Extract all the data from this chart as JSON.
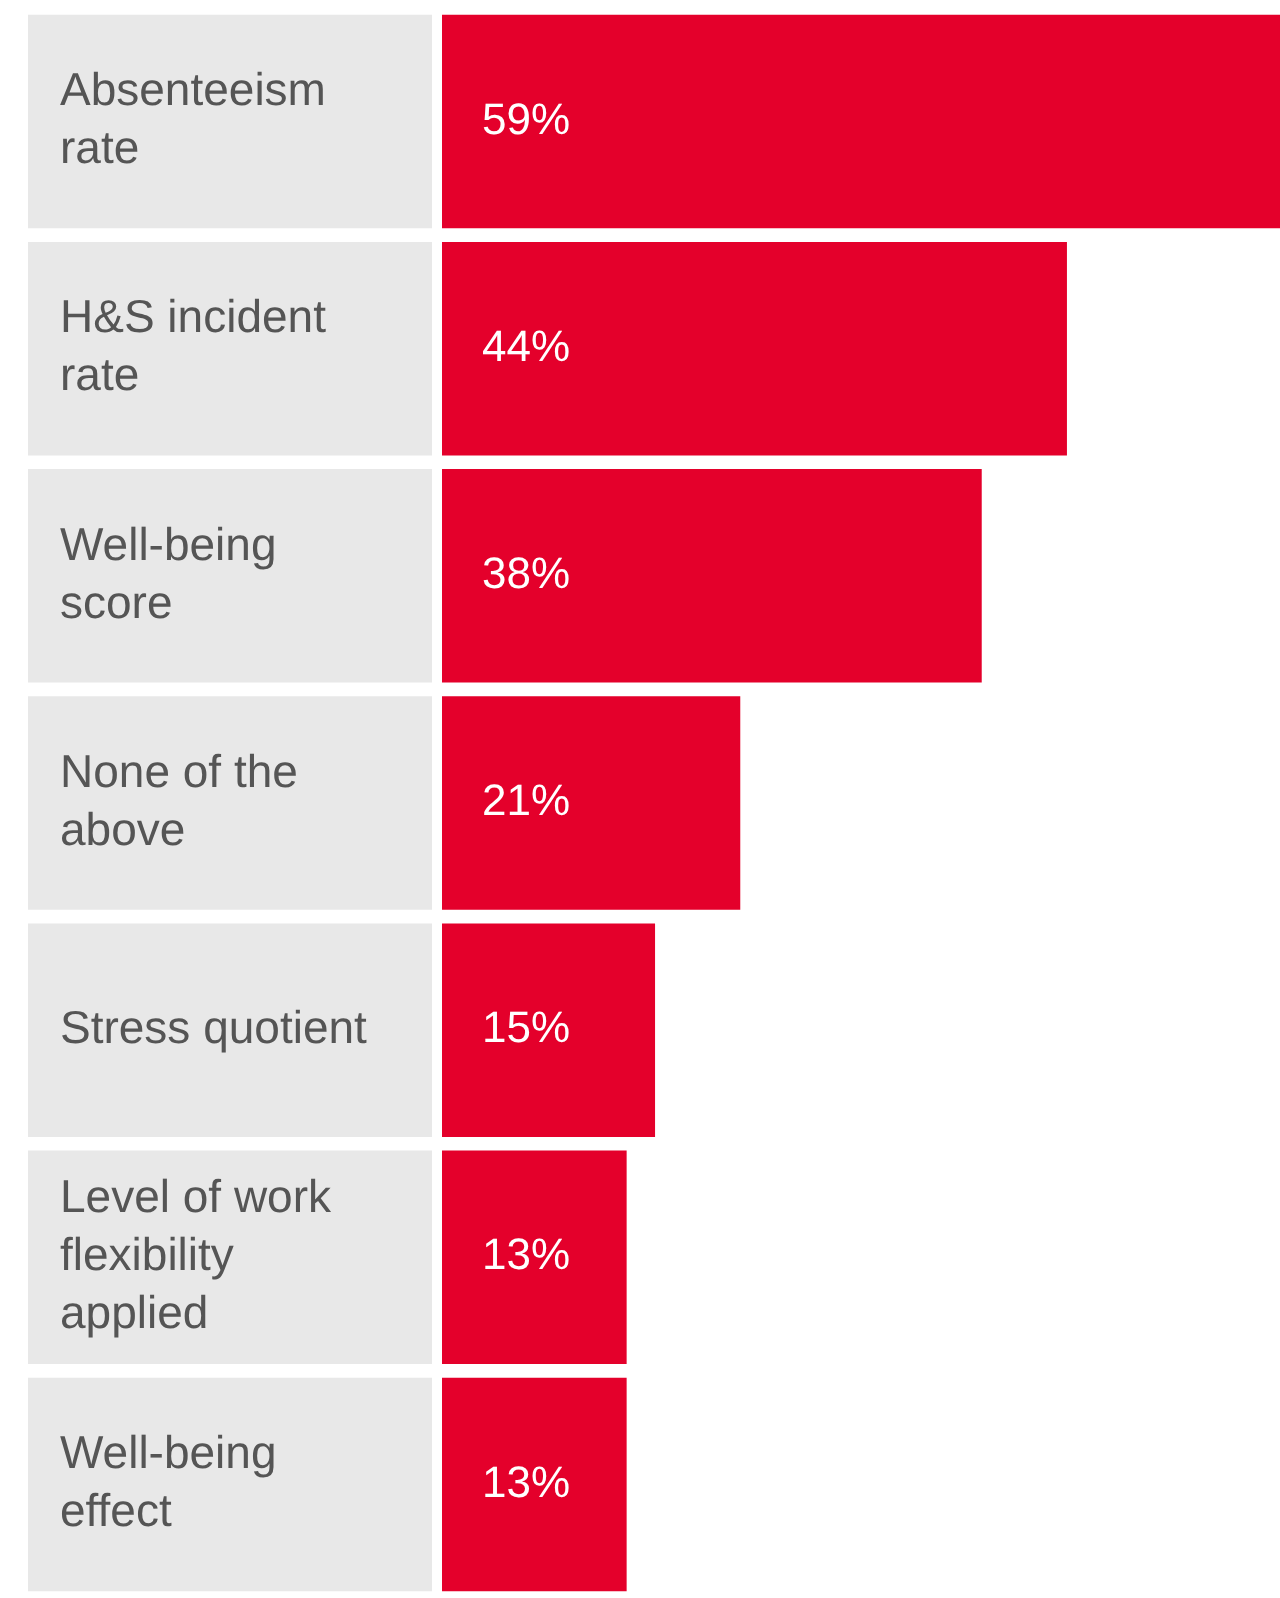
{
  "chart_data": {
    "type": "bar",
    "orientation": "horizontal",
    "categories": [
      "Absenteeism rate",
      "H&S incident rate",
      "Well-being score",
      "None of the above",
      "Stress quotient",
      "Level of work flexibility applied",
      "Well-being effect"
    ],
    "values": [
      59,
      44,
      38,
      21,
      15,
      13,
      13
    ],
    "value_labels": [
      "59%",
      "44%",
      "38%",
      "21%",
      "15%",
      "13%",
      "13%"
    ],
    "color": "#e4002b"
  }
}
